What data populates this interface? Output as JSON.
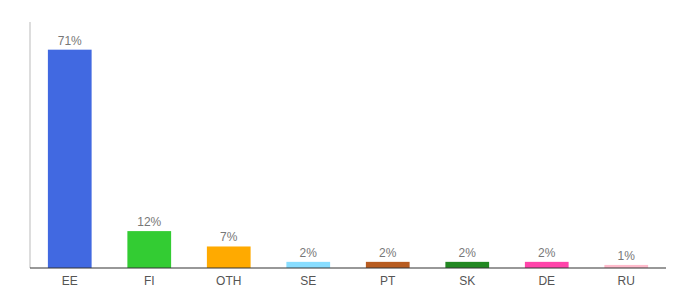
{
  "chart_data": {
    "type": "bar",
    "categories": [
      "EE",
      "FI",
      "OTH",
      "SE",
      "PT",
      "SK",
      "DE",
      "RU"
    ],
    "values": [
      71,
      12,
      7,
      2,
      2,
      2,
      2,
      1
    ],
    "value_labels": [
      "71%",
      "12%",
      "7%",
      "2%",
      "2%",
      "2%",
      "2%",
      "1%"
    ],
    "colors": [
      "#4169e1",
      "#33cc33",
      "#ffaa00",
      "#88ddff",
      "#b85c20",
      "#228822",
      "#ff44aa",
      "#ffbbcc"
    ],
    "ylim": [
      0,
      80
    ],
    "data_labels": true,
    "tick_labels": "x",
    "grid": false
  }
}
